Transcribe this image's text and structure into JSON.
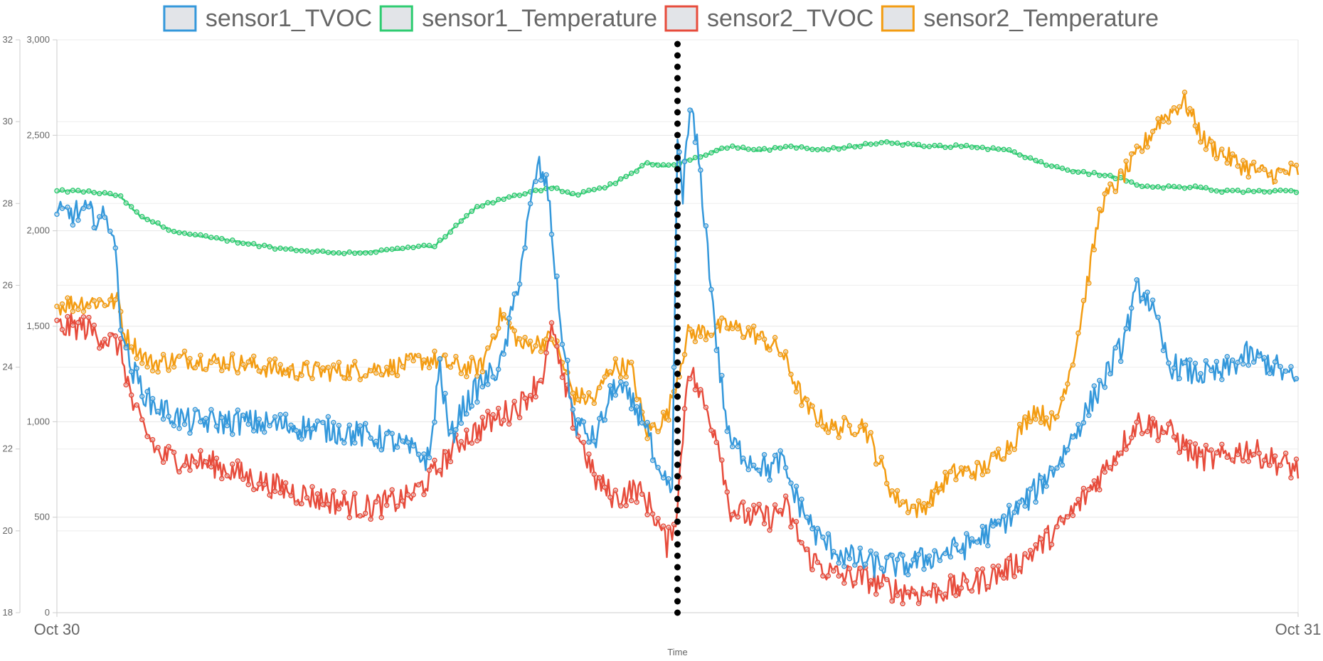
{
  "chart_data": {
    "type": "line",
    "legend_position": "top",
    "grid": true,
    "xlabel": "Time",
    "x_ticks": [
      "Oct 30",
      "Oct 31"
    ],
    "x_range": [
      0,
      24
    ],
    "y_left": {
      "min": 0,
      "max": 3000,
      "ticks": [
        0,
        500,
        1000,
        1500,
        2000,
        2500,
        3000
      ],
      "tick_labels": [
        "0",
        "500",
        "1,000",
        "1,500",
        "2,000",
        "2,500",
        "3,000"
      ]
    },
    "y_right": {
      "min": 18,
      "max": 32,
      "ticks": [
        18,
        20,
        22,
        24,
        26,
        28,
        30,
        32
      ],
      "tick_labels": [
        "18",
        "20",
        "22",
        "24",
        "26",
        "28",
        "30",
        "32"
      ]
    },
    "vertical_marker": {
      "x": 12.0
    },
    "series": [
      {
        "name": "sensor1_TVOC",
        "axis": "left",
        "color": "#3498db",
        "fill": "#e2e4e8",
        "points": [
          [
            0,
            2080
          ],
          [
            0.5,
            2100
          ],
          [
            1,
            2050
          ],
          [
            1.1,
            2000
          ],
          [
            1.2,
            1600
          ],
          [
            1.4,
            1300
          ],
          [
            1.8,
            1100
          ],
          [
            2.5,
            1000
          ],
          [
            3.5,
            1000
          ],
          [
            4.5,
            980
          ],
          [
            5.5,
            950
          ],
          [
            6.5,
            900
          ],
          [
            7.2,
            800
          ],
          [
            7.4,
            1300
          ],
          [
            7.6,
            900
          ],
          [
            7.8,
            1050
          ],
          [
            8.2,
            1200
          ],
          [
            8.6,
            1300
          ],
          [
            8.9,
            1700
          ],
          [
            9.3,
            2350
          ],
          [
            9.5,
            2200
          ],
          [
            9.7,
            1600
          ],
          [
            10.0,
            1000
          ],
          [
            10.4,
            900
          ],
          [
            10.8,
            1200
          ],
          [
            11.1,
            1100
          ],
          [
            11.4,
            1000
          ],
          [
            11.6,
            700
          ],
          [
            11.9,
            650
          ],
          [
            12.0,
            2500
          ],
          [
            12.1,
            2200
          ],
          [
            12.25,
            2650
          ],
          [
            12.4,
            2400
          ],
          [
            12.6,
            1850
          ],
          [
            12.8,
            1300
          ],
          [
            13.0,
            900
          ],
          [
            13.4,
            800
          ],
          [
            13.8,
            750
          ],
          [
            14.0,
            800
          ],
          [
            14.3,
            600
          ],
          [
            14.7,
            400
          ],
          [
            15.2,
            300
          ],
          [
            15.8,
            250
          ],
          [
            16.4,
            250
          ],
          [
            17.0,
            300
          ],
          [
            17.6,
            350
          ],
          [
            18.2,
            450
          ],
          [
            18.8,
            600
          ],
          [
            19.4,
            800
          ],
          [
            20.0,
            1100
          ],
          [
            20.6,
            1400
          ],
          [
            20.9,
            1700
          ],
          [
            21.1,
            1650
          ],
          [
            21.5,
            1300
          ],
          [
            22.0,
            1250
          ],
          [
            22.5,
            1250
          ],
          [
            23.0,
            1350
          ],
          [
            23.5,
            1300
          ],
          [
            24,
            1200
          ]
        ]
      },
      {
        "name": "sensor1_Temperature",
        "axis": "right",
        "color": "#2ecc71",
        "fill": "#e2e4e8",
        "points": [
          [
            0,
            28.3
          ],
          [
            0.5,
            28.3
          ],
          [
            1.2,
            28.2
          ],
          [
            1.6,
            27.7
          ],
          [
            2.3,
            27.3
          ],
          [
            3.3,
            27.1
          ],
          [
            4.3,
            26.9
          ],
          [
            5.3,
            26.8
          ],
          [
            6.0,
            26.8
          ],
          [
            7.0,
            26.95
          ],
          [
            7.3,
            26.95
          ],
          [
            7.6,
            27.3
          ],
          [
            8.1,
            27.9
          ],
          [
            8.6,
            28.1
          ],
          [
            9.2,
            28.3
          ],
          [
            9.6,
            28.4
          ],
          [
            10.0,
            28.2
          ],
          [
            10.6,
            28.4
          ],
          [
            11.1,
            28.7
          ],
          [
            11.4,
            29.0
          ],
          [
            11.8,
            28.9
          ],
          [
            12.3,
            29.1
          ],
          [
            13.0,
            29.4
          ],
          [
            13.6,
            29.3
          ],
          [
            14.2,
            29.4
          ],
          [
            14.8,
            29.3
          ],
          [
            15.4,
            29.4
          ],
          [
            16.0,
            29.5
          ],
          [
            16.8,
            29.4
          ],
          [
            17.6,
            29.4
          ],
          [
            18.4,
            29.3
          ],
          [
            19.0,
            29.0
          ],
          [
            19.6,
            28.8
          ],
          [
            20.2,
            28.7
          ],
          [
            20.6,
            28.6
          ],
          [
            21.0,
            28.4
          ],
          [
            22.0,
            28.4
          ],
          [
            22.5,
            28.3
          ],
          [
            23.0,
            28.3
          ],
          [
            24,
            28.3
          ]
        ]
      },
      {
        "name": "sensor2_TVOC",
        "axis": "left",
        "color": "#e74c3c",
        "fill": "#e2e4e8",
        "points": [
          [
            0,
            1490
          ],
          [
            0.5,
            1500
          ],
          [
            1.2,
            1400
          ],
          [
            1.3,
            1300
          ],
          [
            1.5,
            1050
          ],
          [
            2.0,
            820
          ],
          [
            3.0,
            780
          ],
          [
            4.0,
            680
          ],
          [
            5.0,
            600
          ],
          [
            6.0,
            550
          ],
          [
            6.8,
            600
          ],
          [
            7.2,
            700
          ],
          [
            7.8,
            900
          ],
          [
            8.4,
            1000
          ],
          [
            9.0,
            1100
          ],
          [
            9.4,
            1250
          ],
          [
            9.6,
            1500
          ],
          [
            9.7,
            1300
          ],
          [
            10.0,
            1000
          ],
          [
            10.4,
            700
          ],
          [
            10.8,
            600
          ],
          [
            11.2,
            650
          ],
          [
            11.5,
            550
          ],
          [
            11.8,
            350
          ],
          [
            12.0,
            550
          ],
          [
            12.2,
            1300
          ],
          [
            12.5,
            1100
          ],
          [
            12.8,
            900
          ],
          [
            13.0,
            550
          ],
          [
            13.4,
            500
          ],
          [
            13.8,
            500
          ],
          [
            14.1,
            550
          ],
          [
            14.5,
            300
          ],
          [
            15.0,
            200
          ],
          [
            15.6,
            180
          ],
          [
            16.2,
            120
          ],
          [
            16.8,
            100
          ],
          [
            17.4,
            130
          ],
          [
            18.0,
            180
          ],
          [
            18.6,
            260
          ],
          [
            19.0,
            350
          ],
          [
            19.4,
            450
          ],
          [
            19.8,
            580
          ],
          [
            20.4,
            800
          ],
          [
            20.9,
            1000
          ],
          [
            21.5,
            950
          ],
          [
            22.0,
            820
          ],
          [
            22.4,
            800
          ],
          [
            23.0,
            860
          ],
          [
            23.5,
            800
          ],
          [
            24,
            750
          ]
        ]
      },
      {
        "name": "sensor2_Temperature",
        "axis": "right",
        "color": "#f39c12",
        "fill": "#e2e4e8",
        "points": [
          [
            0,
            25.5
          ],
          [
            0.5,
            25.6
          ],
          [
            1.2,
            25.6
          ],
          [
            1.3,
            24.8
          ],
          [
            1.8,
            24.1
          ],
          [
            2.5,
            24.2
          ],
          [
            3.5,
            24.1
          ],
          [
            4.5,
            23.9
          ],
          [
            5.5,
            23.9
          ],
          [
            6.5,
            24.0
          ],
          [
            7.2,
            24.2
          ],
          [
            7.8,
            24.0
          ],
          [
            8.2,
            24.0
          ],
          [
            8.6,
            25.3
          ],
          [
            9.0,
            24.5
          ],
          [
            9.6,
            24.7
          ],
          [
            10.0,
            23.3
          ],
          [
            10.4,
            23.2
          ],
          [
            10.7,
            24.0
          ],
          [
            11.1,
            24.0
          ],
          [
            11.4,
            22.4
          ],
          [
            11.8,
            22.8
          ],
          [
            12.2,
            24.8
          ],
          [
            12.6,
            24.9
          ],
          [
            13.0,
            25.0
          ],
          [
            13.5,
            24.8
          ],
          [
            14.0,
            24.4
          ],
          [
            14.5,
            23.0
          ],
          [
            15.0,
            22.5
          ],
          [
            15.6,
            22.6
          ],
          [
            16.2,
            20.8
          ],
          [
            16.7,
            20.5
          ],
          [
            17.3,
            21.4
          ],
          [
            17.9,
            21.5
          ],
          [
            18.5,
            22.2
          ],
          [
            18.9,
            23.0
          ],
          [
            19.3,
            22.6
          ],
          [
            19.7,
            24.5
          ],
          [
            20.2,
            28.0
          ],
          [
            20.8,
            29.0
          ],
          [
            21.3,
            30.0
          ],
          [
            21.8,
            30.5
          ],
          [
            22.2,
            29.5
          ],
          [
            22.8,
            29.0
          ],
          [
            23.4,
            28.7
          ],
          [
            24,
            28.8
          ]
        ]
      }
    ]
  }
}
